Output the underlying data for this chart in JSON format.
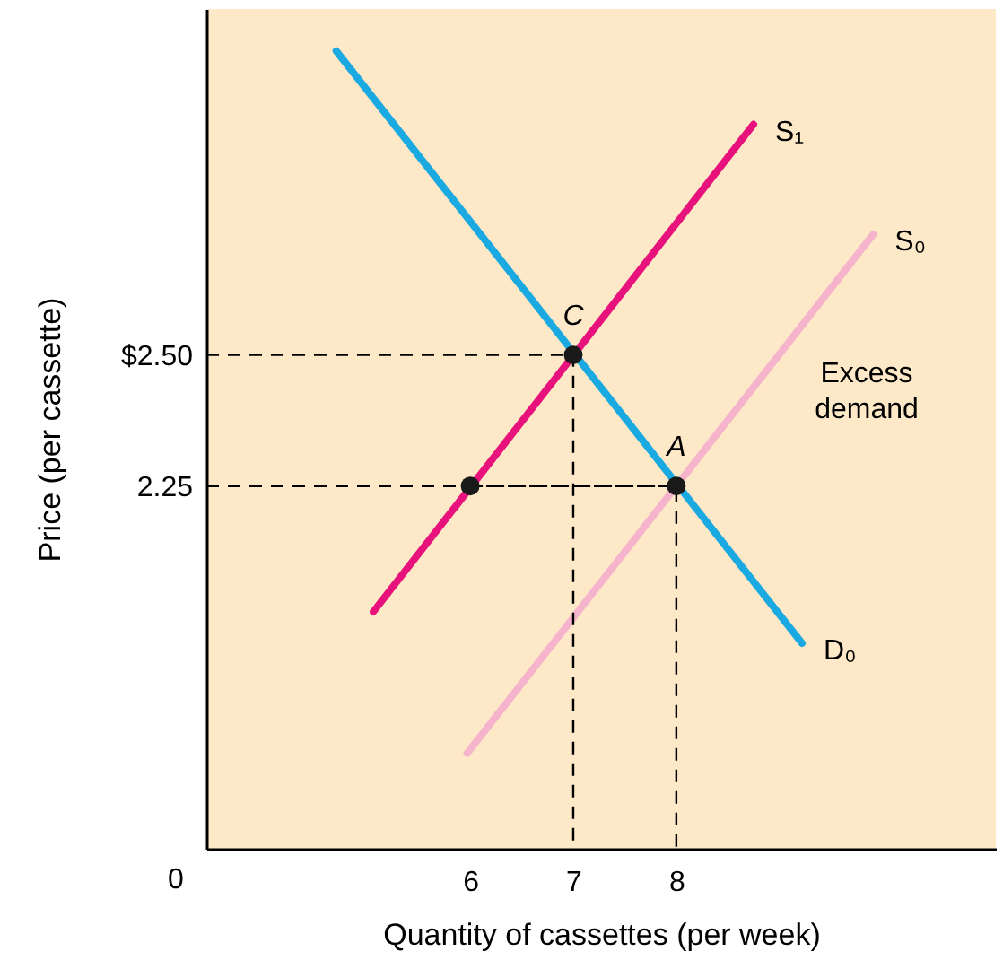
{
  "chart_data": {
    "type": "line",
    "xlabel": "Quantity of cassettes (per week)",
    "ylabel": "Price (per cassette)",
    "xlim": [
      3.44,
      11.1
    ],
    "ylim": [
      1.558,
      3.16
    ],
    "xticks": [
      6,
      7,
      8
    ],
    "yticks": [
      {
        "value": 2.5,
        "label": "$2.50"
      },
      2.25
    ],
    "grid": false,
    "series": [
      {
        "name": "S₀",
        "color": "#f5b3cc",
        "x": [
          5.97,
          9.91
        ],
        "values": [
          1.74,
          2.73
        ]
      },
      {
        "name": "D₀",
        "color": "#1aa9e0",
        "x": [
          4.7,
          9.22
        ],
        "values": [
          3.08,
          1.95
        ]
      },
      {
        "name": "S₁",
        "color": "#e8127c",
        "x": [
          5.06,
          8.75
        ],
        "values": [
          2.01,
          2.94
        ]
      },
      {
        "color": "#000000",
        "line_style": "dashed",
        "x": [
          3.44,
          7,
          7
        ],
        "values": [
          2.5,
          2.5,
          1.558
        ]
      },
      {
        "color": "#000000",
        "line_style": "dashed",
        "x": [
          3.44,
          8,
          8
        ],
        "values": [
          2.25,
          2.25,
          1.558
        ]
      },
      {
        "color": "#000000",
        "line_style": "dashed",
        "x": [
          6,
          8
        ],
        "values": [
          2.25,
          2.25
        ]
      },
      {
        "type": "scatter",
        "marker": "circle",
        "color": "#1a1a1a",
        "x": [
          7,
          8,
          6
        ],
        "values": [
          2.5,
          2.25,
          2.25
        ]
      }
    ],
    "annotations": [
      {
        "text": "C",
        "x": 7,
        "y": 2.5
      },
      {
        "text": "A",
        "x": 8,
        "y": 2.25
      },
      "0",
      "Excess demand"
    ]
  }
}
